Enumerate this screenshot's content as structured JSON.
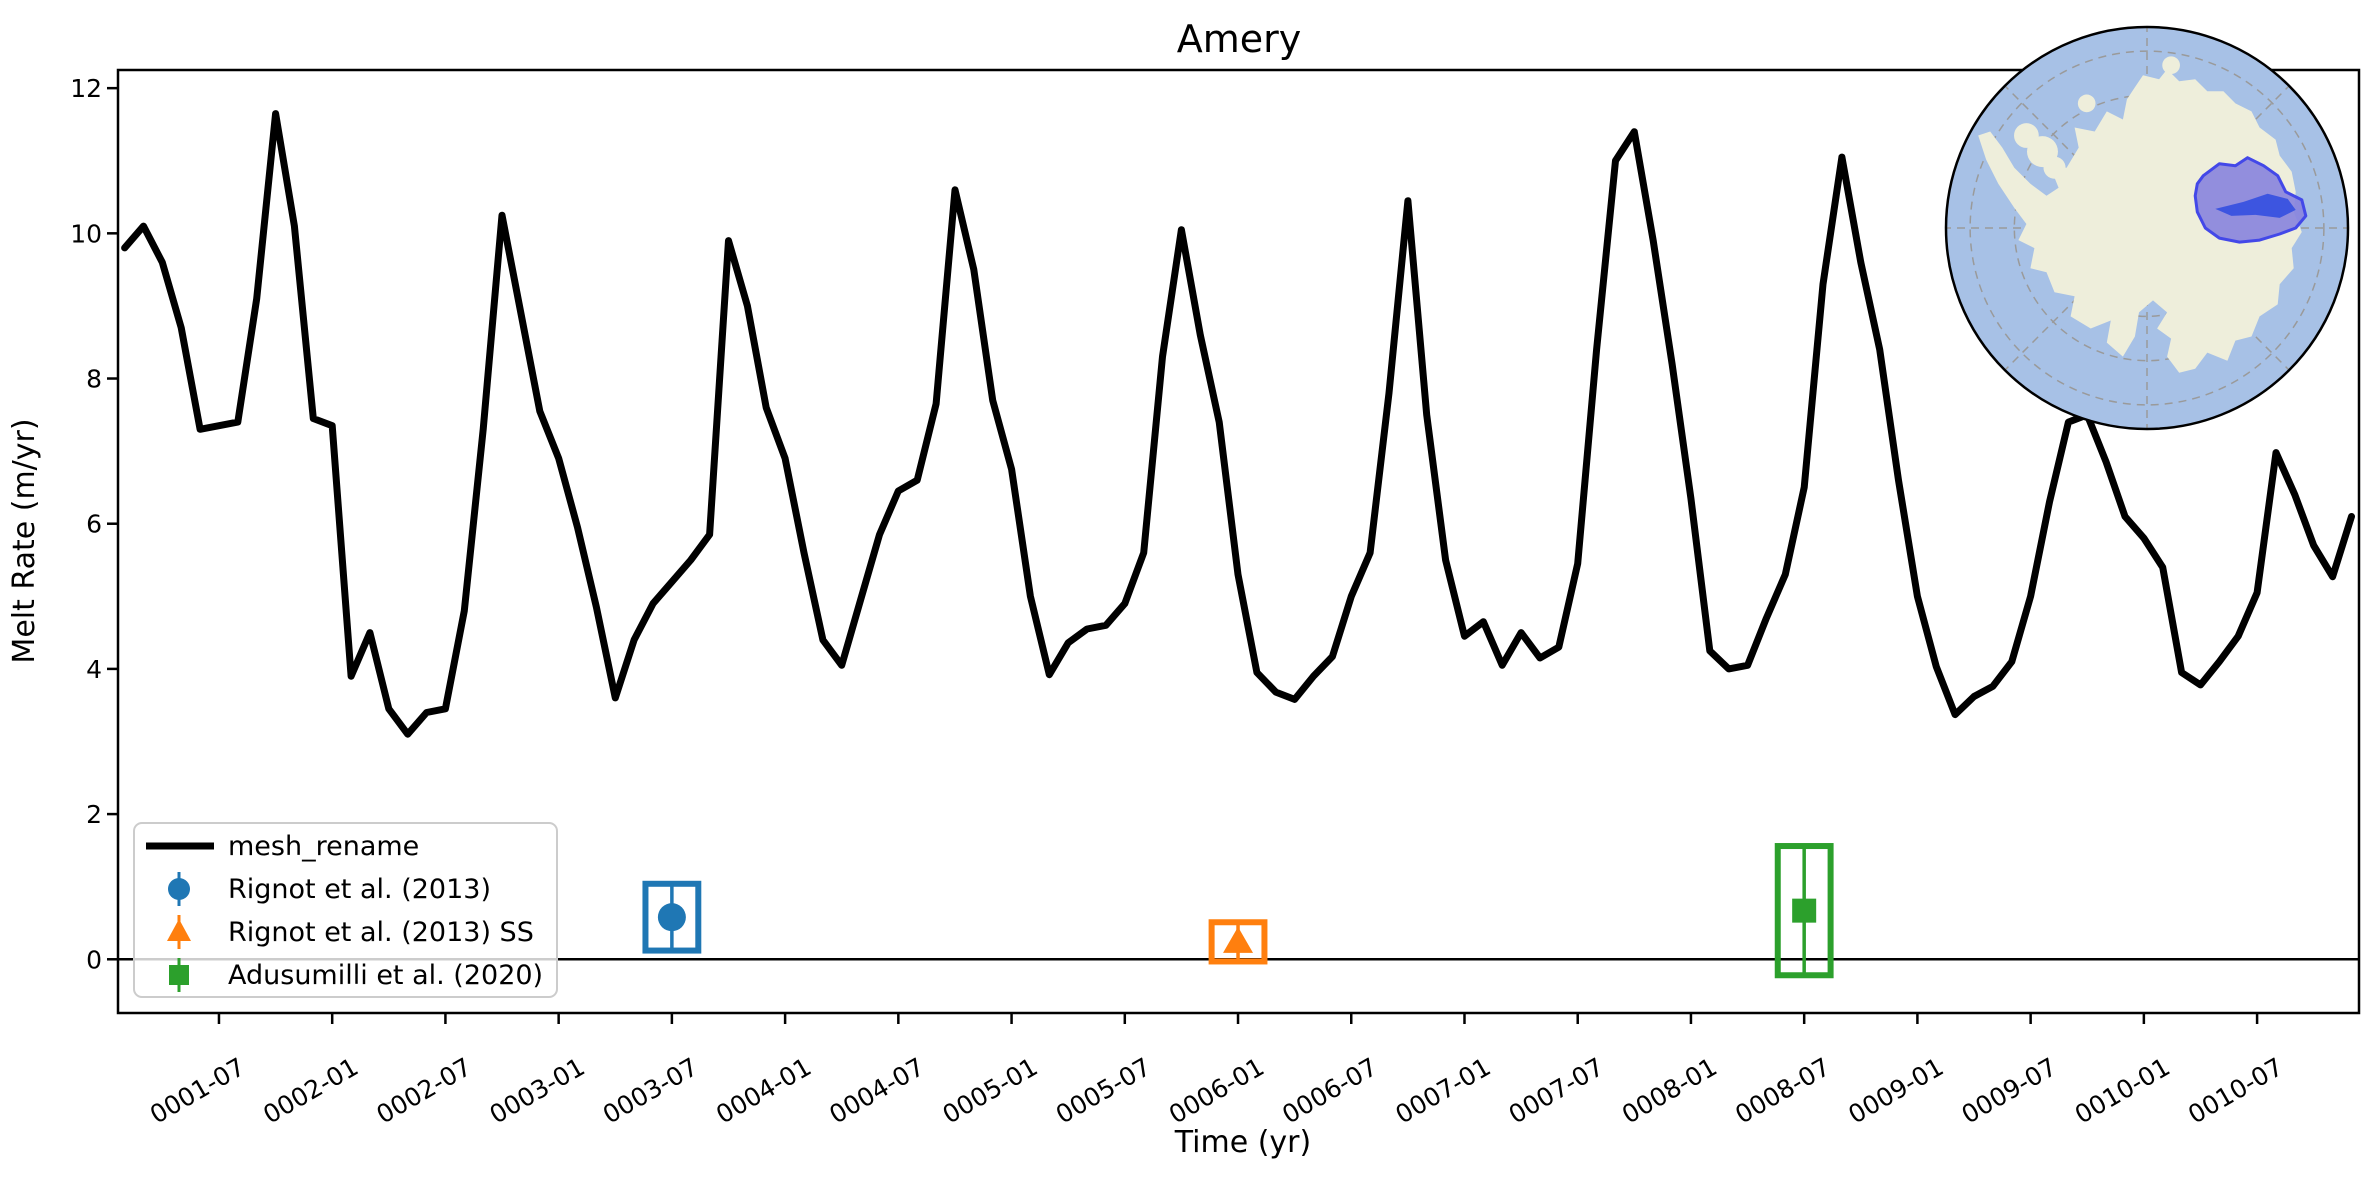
{
  "title": "Amery",
  "axes": {
    "xlabel": "Time (yr)",
    "ylabel": "Melt Rate (m/yr)",
    "x_tick_labels": [
      "0001-07",
      "0002-01",
      "0002-07",
      "0003-01",
      "0003-07",
      "0004-01",
      "0004-07",
      "0005-01",
      "0005-07",
      "0006-01",
      "0006-07",
      "0007-01",
      "0007-07",
      "0008-01",
      "0008-07",
      "0009-01",
      "0009-07",
      "0010-01",
      "0010-07"
    ],
    "y_tick_labels": [
      "0",
      "2",
      "4",
      "6",
      "8",
      "10",
      "12"
    ],
    "ylim": [
      -0.74,
      12.25
    ],
    "xlim_month_index": [
      0.65,
      119.4
    ],
    "zero_line_value": 0
  },
  "chart_data": {
    "type": "line",
    "title": "Amery",
    "xlabel": "Time (yr)",
    "ylabel": "Melt Rate (m/yr)",
    "ylim": [
      -0.74,
      12.25
    ],
    "grid": false,
    "legend_position": "lower left",
    "series": [
      {
        "name": "mesh_rename",
        "color": "#000000",
        "x": [
          "0001-02",
          "0001-03",
          "0001-04",
          "0001-05",
          "0001-06",
          "0001-07",
          "0001-08",
          "0001-09",
          "0001-10",
          "0001-11",
          "0001-12",
          "0002-01",
          "0002-02",
          "0002-03",
          "0002-04",
          "0002-05",
          "0002-06",
          "0002-07",
          "0002-08",
          "0002-09",
          "0002-10",
          "0002-11",
          "0002-12",
          "0003-01",
          "0003-02",
          "0003-03",
          "0003-04",
          "0003-05",
          "0003-06",
          "0003-07",
          "0003-08",
          "0003-09",
          "0003-10",
          "0003-11",
          "0003-12",
          "0004-01",
          "0004-02",
          "0004-03",
          "0004-04",
          "0004-05",
          "0004-06",
          "0004-07",
          "0004-08",
          "0004-09",
          "0004-10",
          "0004-11",
          "0004-12",
          "0005-01",
          "0005-02",
          "0005-03",
          "0005-04",
          "0005-05",
          "0005-06",
          "0005-07",
          "0005-08",
          "0005-09",
          "0005-10",
          "0005-11",
          "0005-12",
          "0006-01",
          "0006-02",
          "0006-03",
          "0006-04",
          "0006-05",
          "0006-06",
          "0006-07",
          "0006-08",
          "0006-09",
          "0006-10",
          "0006-11",
          "0006-12",
          "0007-01",
          "0007-02",
          "0007-03",
          "0007-04",
          "0007-05",
          "0007-06",
          "0007-07",
          "0007-08",
          "0007-09",
          "0007-10",
          "0007-11",
          "0007-12",
          "0008-01",
          "0008-02",
          "0008-03",
          "0008-04",
          "0008-05",
          "0008-06",
          "0008-07",
          "0008-08",
          "0008-09",
          "0008-10",
          "0008-11",
          "0008-12",
          "0009-01",
          "0009-02",
          "0009-03",
          "0009-04",
          "0009-05",
          "0009-06",
          "0009-07",
          "0009-08",
          "0009-09",
          "0009-10",
          "0009-11",
          "0009-12",
          "0010-01",
          "0010-02",
          "0010-03",
          "0010-04",
          "0010-05",
          "0010-06",
          "0010-07",
          "0010-08",
          "0010-09",
          "0010-10",
          "0010-11",
          "0010-12"
        ],
        "values": [
          9.8,
          10.1,
          9.6,
          8.7,
          7.3,
          7.35,
          7.4,
          9.1,
          11.65,
          10.1,
          7.45,
          7.35,
          3.9,
          4.5,
          3.45,
          3.1,
          3.4,
          3.45,
          4.8,
          7.3,
          10.25,
          8.9,
          7.55,
          6.9,
          5.95,
          4.85,
          3.6,
          4.4,
          4.9,
          5.2,
          5.5,
          5.85,
          9.9,
          9.0,
          7.6,
          6.9,
          5.6,
          4.4,
          4.05,
          4.95,
          5.85,
          6.45,
          6.6,
          7.65,
          10.6,
          9.5,
          7.7,
          6.75,
          5.0,
          3.92,
          4.36,
          4.55,
          4.6,
          4.9,
          5.6,
          8.3,
          10.05,
          8.6,
          7.4,
          5.3,
          3.95,
          3.68,
          3.58,
          3.9,
          4.17,
          5.0,
          5.6,
          7.8,
          10.45,
          7.5,
          5.5,
          4.45,
          4.65,
          4.05,
          4.5,
          4.15,
          4.3,
          5.45,
          8.4,
          11.0,
          11.4,
          9.9,
          8.2,
          6.35,
          4.25,
          4.0,
          4.05,
          4.7,
          5.3,
          6.5,
          9.3,
          11.05,
          9.6,
          8.4,
          6.6,
          5.0,
          4.03,
          3.37,
          3.62,
          3.76,
          4.1,
          5.0,
          6.3,
          7.4,
          7.5,
          6.85,
          6.1,
          5.8,
          5.4,
          3.95,
          3.78,
          4.1,
          4.45,
          5.05,
          6.98,
          6.4,
          5.7,
          5.27,
          6.1
        ]
      }
    ],
    "observations": [
      {
        "label": "Rignot et al. (2013)",
        "marker": "circle",
        "color": "#1f77b4",
        "t": "0003-07",
        "t_err_months": 1.4,
        "value": 0.58,
        "value_err": 0.46
      },
      {
        "label": "Rignot et al. (2013) SS",
        "marker": "triangle",
        "color": "#ff7f0e",
        "t": "0006-01",
        "t_err_months": 1.4,
        "value": 0.24,
        "value_err": 0.27
      },
      {
        "label": "Adusumilli et al. (2020)",
        "marker": "square",
        "color": "#2ca02c",
        "t": "0008-07",
        "t_err_months": 1.4,
        "value": 0.67,
        "value_err": 0.89
      }
    ]
  },
  "legend": {
    "items": [
      {
        "label": "mesh_rename",
        "swatch": "thick-black-line"
      },
      {
        "label": "Rignot et al. (2013)",
        "swatch": "blue-circle-errorbar"
      },
      {
        "label": "Rignot et al. (2013) SS",
        "swatch": "orange-triangle-errorbar"
      },
      {
        "label": "Adusumilli et al. (2020)",
        "swatch": "green-square-errorbar"
      }
    ]
  },
  "inset_map": {
    "description": "South polar map of Antarctica with Amery drainage basin highlighted",
    "ocean_color": "#a7c1e6",
    "land_color": "#eeeedb",
    "basin_fill_color": "#8a85dd",
    "basin_edge_color": "#4348e8",
    "ice_shelf_color": "#3d55e0",
    "graticule_color": "#9a9a9a",
    "outline_color": "#000000"
  },
  "colors": {
    "line": "#000000",
    "obs_blue": "#1f77b4",
    "obs_orange": "#ff7f0e",
    "obs_green": "#2ca02c",
    "legend_border": "#cccccc"
  }
}
